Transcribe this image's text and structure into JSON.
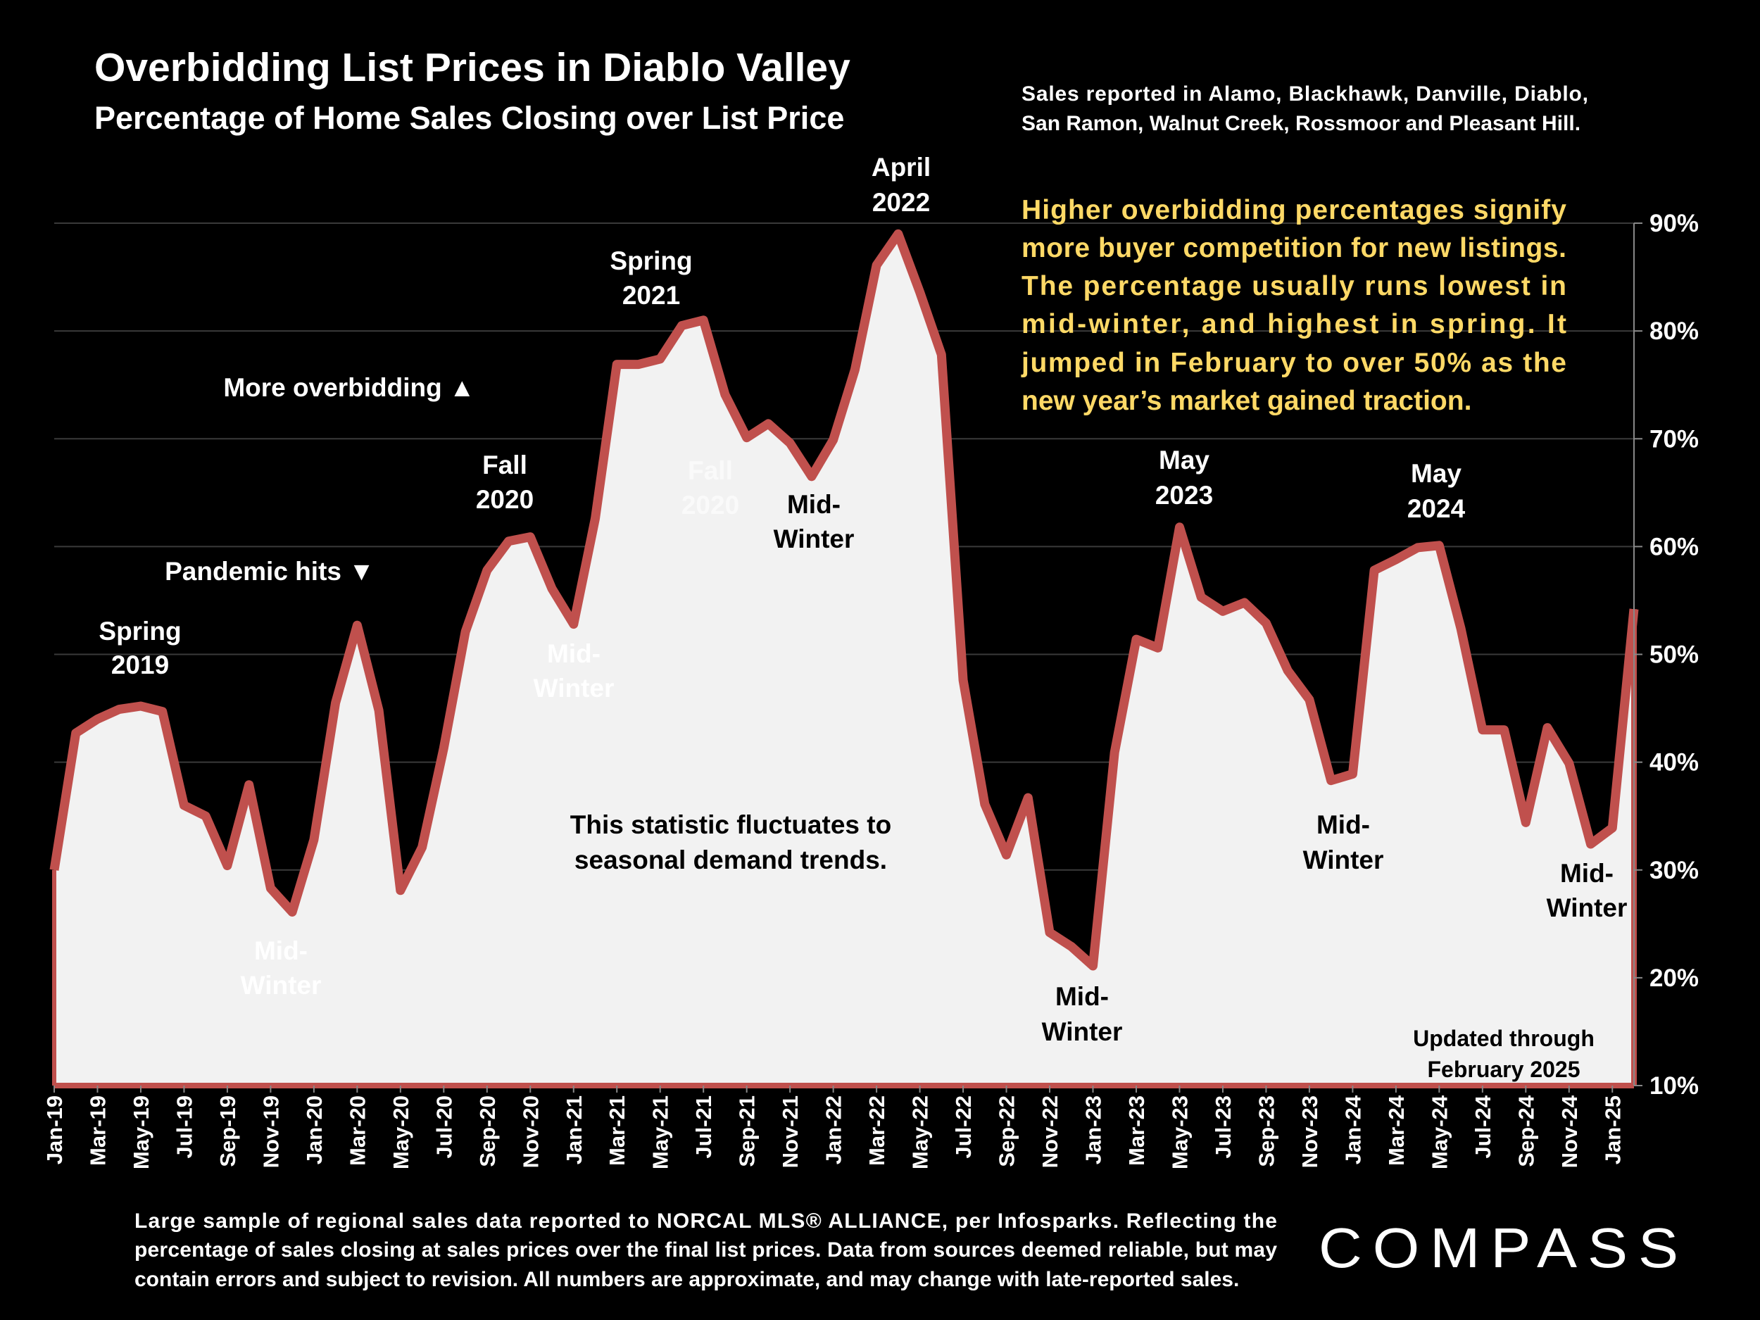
{
  "header": {
    "title": "Overbidding List Prices in Diablo Valley",
    "subtitle": "Percentage of Home Sales Closing over List Price",
    "region_note": [
      "Sales reported in Alamo, Blackhawk, Danville, Diablo,",
      "San Ramon, Walnut Creek, Rossmoor and Pleasant Hill."
    ]
  },
  "explanation": [
    "Higher overbidding percentages signify",
    "more buyer competition for new listings.",
    "The percentage usually runs lowest in",
    "mid-winter, and highest in spring. It",
    "jumped in February to over 50% as the",
    "new year’s market gained traction."
  ],
  "annotations": {
    "spring2019": [
      "Spring",
      "2019"
    ],
    "pandemic": "Pandemic hits ▼",
    "more_overbidding": "More overbidding ▲",
    "midwinter1": [
      "Mid-",
      "Winter"
    ],
    "fall2020": [
      "Fall",
      "2020"
    ],
    "midwinter2": [
      "Mid-",
      "Winter"
    ],
    "spring2021": [
      "Spring",
      "2021"
    ],
    "fall2020_faint": [
      "Fall",
      "2020"
    ],
    "midwinter3": [
      "Mid-",
      "Winter"
    ],
    "april2022": [
      "April",
      "2022"
    ],
    "fluctuates": [
      "This statistic fluctuates to",
      "seasonal demand trends."
    ],
    "midwinter4": [
      "Mid-",
      "Winter"
    ],
    "may2023": [
      "May",
      "2023"
    ],
    "midwinter5": [
      "Mid-",
      "Winter"
    ],
    "may2024": [
      "May",
      "2024"
    ],
    "midwinter6": [
      "Mid-",
      "Winter"
    ],
    "updated": [
      "Updated through",
      "February 2025"
    ]
  },
  "footer": {
    "disclaimer": [
      "Large sample of regional sales data reported to NORCAL MLS® ALLIANCE, per Infosparks. Reflecting the",
      "percentage of sales closing at sales prices over the final list prices. Data from sources deemed reliable, but may",
      "contain errors and subject to revision. All numbers are approximate, and may change with late-reported sales."
    ],
    "logo": "COMPASS"
  },
  "colors": {
    "line": "#c0504d",
    "fill": "#f2f2f2",
    "note": "#ffd966",
    "background": "#000000",
    "grid": "#3a3a3a"
  },
  "chart_data": {
    "type": "area",
    "title": "Overbidding List Prices in Diablo Valley",
    "subtitle": "Percentage of Home Sales Closing over List Price",
    "y_axis_position": "right",
    "ylim": [
      10,
      90
    ],
    "yticks": [
      "10%",
      "20%",
      "30%",
      "40%",
      "50%",
      "60%",
      "70%",
      "80%",
      "90%"
    ],
    "grid": true,
    "x": [
      "Jan-19",
      "Feb-19",
      "Mar-19",
      "Apr-19",
      "May-19",
      "Jun-19",
      "Jul-19",
      "Aug-19",
      "Sep-19",
      "Oct-19",
      "Nov-19",
      "Dec-19",
      "Jan-20",
      "Feb-20",
      "Mar-20",
      "Apr-20",
      "May-20",
      "Jun-20",
      "Jul-20",
      "Aug-20",
      "Sep-20",
      "Oct-20",
      "Nov-20",
      "Dec-20",
      "Jan-21",
      "Feb-21",
      "Mar-21",
      "Apr-21",
      "May-21",
      "Jun-21",
      "Jul-21",
      "Aug-21",
      "Sep-21",
      "Oct-21",
      "Nov-21",
      "Dec-21",
      "Jan-22",
      "Feb-22",
      "Mar-22",
      "Apr-22",
      "May-22",
      "Jun-22",
      "Jul-22",
      "Aug-22",
      "Sep-22",
      "Oct-22",
      "Nov-22",
      "Dec-22",
      "Jan-23",
      "Feb-23",
      "Mar-23",
      "Apr-23",
      "May-23",
      "Jun-23",
      "Jul-23",
      "Aug-23",
      "Sep-23",
      "Oct-23",
      "Nov-23",
      "Dec-23",
      "Jan-24",
      "Feb-24",
      "Mar-24",
      "Apr-24",
      "May-24",
      "Jun-24",
      "Jul-24",
      "Aug-24",
      "Sep-24",
      "Oct-24",
      "Nov-24",
      "Dec-24",
      "Jan-25",
      "Feb-25"
    ],
    "xtick_labels": [
      "Jan-19",
      "Mar-19",
      "May-19",
      "Jul-19",
      "Sep-19",
      "Nov-19",
      "Jan-20",
      "Mar-20",
      "May-20",
      "Jul-20",
      "Sep-20",
      "Nov-20",
      "Jan-21",
      "Mar-21",
      "May-21",
      "Jul-21",
      "Sep-21",
      "Nov-21",
      "Jan-22",
      "Mar-22",
      "May-22",
      "Jul-22",
      "Sep-22",
      "Nov-22",
      "Jan-23",
      "Mar-23",
      "May-23",
      "Jul-23",
      "Sep-23",
      "Nov-23",
      "Jan-24",
      "Mar-24",
      "May-24",
      "Jul-24",
      "Sep-24",
      "Nov-24",
      "Jan-25"
    ],
    "values": [
      30,
      42.7,
      44,
      44.9,
      45.2,
      44.7,
      36,
      35,
      30.4,
      37.9,
      28.3,
      26.1,
      32.8,
      45.5,
      52.7,
      44.8,
      28.1,
      32.1,
      41.3,
      52.1,
      57.8,
      60.5,
      60.9,
      56.1,
      52.8,
      62.6,
      76.9,
      76.9,
      77.4,
      80.5,
      81,
      74.1,
      70.1,
      71.4,
      69.6,
      66.5,
      69.9,
      76.4,
      86.1,
      89,
      83.6,
      77.8,
      47.6,
      36.1,
      31.4,
      36.7,
      24.2,
      22.9,
      21.1,
      40.9,
      51.4,
      50.6,
      61.8,
      55.3,
      54,
      54.8,
      52.9,
      48.5,
      45.8,
      38.3,
      38.9,
      57.8,
      58.8,
      59.9,
      60.1,
      52.4,
      43,
      43,
      34.4,
      43.2,
      39.9,
      32.4,
      33.9,
      54.2
    ]
  }
}
